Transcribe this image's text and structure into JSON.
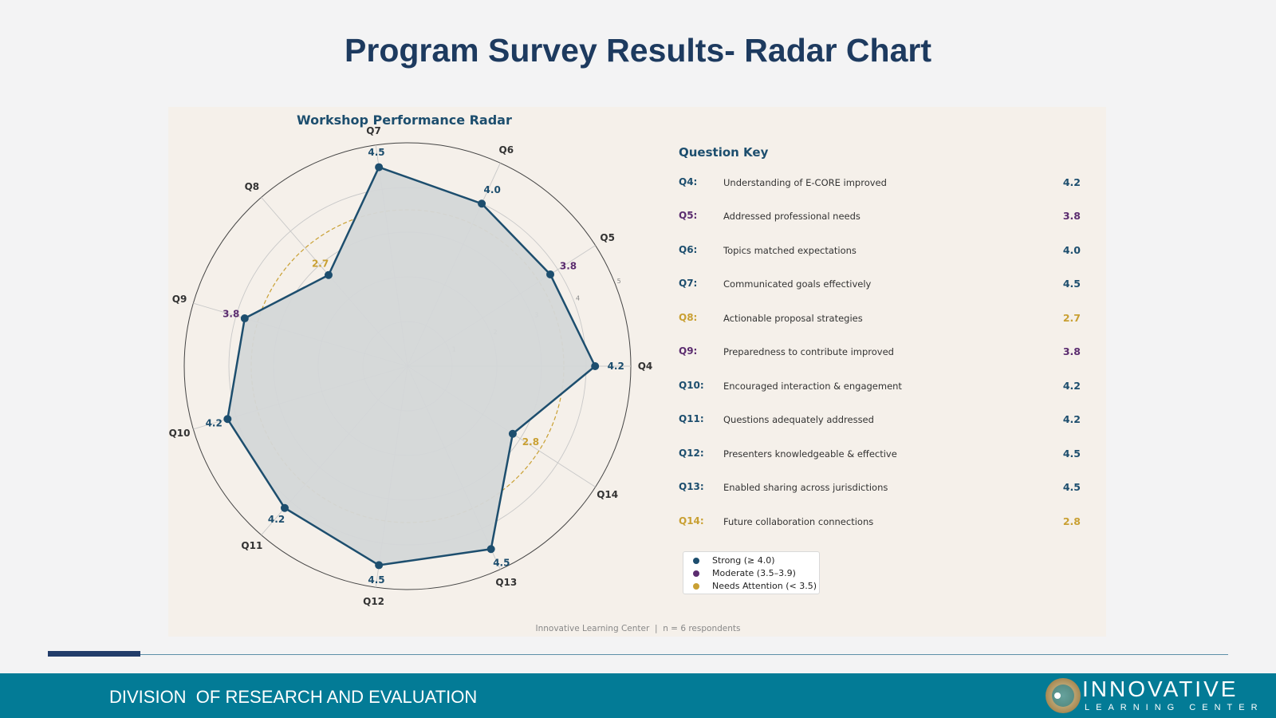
{
  "page_title": "Program Survey Results- Radar Chart",
  "colors": {
    "strong": "#1d4e6e",
    "moderate": "#5b2c6f",
    "attention": "#c9a033",
    "fill": "#d4d7d8",
    "footer": "#037b96"
  },
  "chart_data": {
    "type": "radar",
    "title": "Workshop Performance Radar",
    "categories": [
      "Q4",
      "Q5",
      "Q6",
      "Q7",
      "Q8",
      "Q9",
      "Q10",
      "Q11",
      "Q12",
      "Q13",
      "Q14"
    ],
    "values": [
      4.2,
      3.8,
      4.0,
      4.5,
      2.7,
      3.8,
      4.2,
      4.2,
      4.5,
      4.5,
      2.8
    ],
    "value_labels": [
      "4.2",
      "3.8",
      "4.0",
      "4.5",
      "2.7",
      "3.8",
      "4.2",
      "4.2",
      "4.5",
      "4.5",
      "2.8"
    ],
    "radial_range": [
      0,
      5
    ],
    "radial_ticks": [
      "1",
      "2",
      "3",
      "4",
      "5"
    ],
    "threshold": 3.5,
    "grid": true
  },
  "key": {
    "title": "Question Key",
    "items": [
      {
        "code": "Q4:",
        "text": "Understanding of E-CORE improved",
        "score": "4.2",
        "level": "strong"
      },
      {
        "code": "Q5:",
        "text": "Addressed professional needs",
        "score": "3.8",
        "level": "moderate"
      },
      {
        "code": "Q6:",
        "text": "Topics matched expectations",
        "score": "4.0",
        "level": "strong"
      },
      {
        "code": "Q7:",
        "text": "Communicated goals effectively",
        "score": "4.5",
        "level": "strong"
      },
      {
        "code": "Q8:",
        "text": "Actionable proposal strategies",
        "score": "2.7",
        "level": "attention"
      },
      {
        "code": "Q9:",
        "text": "Preparedness to contribute improved",
        "score": "3.8",
        "level": "moderate"
      },
      {
        "code": "Q10:",
        "text": "Encouraged interaction & engagement",
        "score": "4.2",
        "level": "strong"
      },
      {
        "code": "Q11:",
        "text": "Questions adequately addressed",
        "score": "4.2",
        "level": "strong"
      },
      {
        "code": "Q12:",
        "text": "Presenters knowledgeable & effective",
        "score": "4.5",
        "level": "strong"
      },
      {
        "code": "Q13:",
        "text": "Enabled sharing across jurisdictions",
        "score": "4.5",
        "level": "strong"
      },
      {
        "code": "Q14:",
        "text": "Future collaboration connections",
        "score": "2.8",
        "level": "attention"
      }
    ]
  },
  "legend": {
    "strong": "Strong (≥ 4.0)",
    "moderate": "Moderate (3.5–3.9)",
    "attention": "Needs Attention (< 3.5)"
  },
  "footnote": "Innovative Learning Center  |  n = 6 respondents",
  "footer": {
    "division": "DIVISION  OF RESEARCH AND EVALUATION",
    "logo_word": "INNOVATIVE",
    "logo_sub": "LEARNING CENTER"
  }
}
